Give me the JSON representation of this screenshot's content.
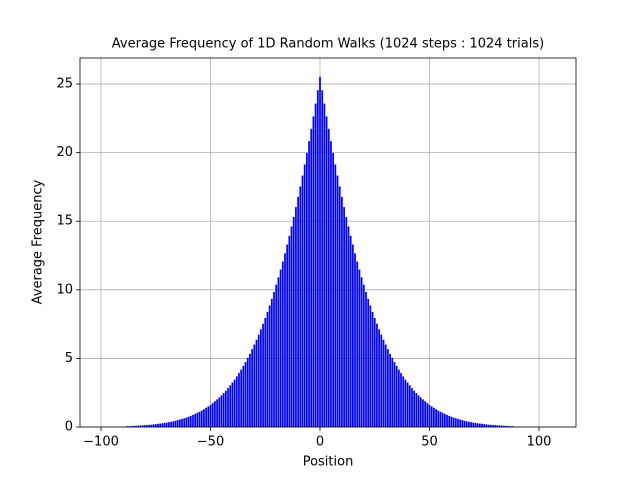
{
  "chart_data": {
    "type": "bar",
    "title": "Average Frequency of 1D Random Walks (1024 steps : 1024 trials)",
    "xlabel": "Position",
    "ylabel": "Average Frequency",
    "x": [
      -88,
      -87,
      -86,
      -85,
      -84,
      -83,
      -82,
      -81,
      -80,
      -79,
      -78,
      -77,
      -76,
      -75,
      -74,
      -73,
      -72,
      -71,
      -70,
      -69,
      -68,
      -67,
      -66,
      -65,
      -64,
      -63,
      -62,
      -61,
      -60,
      -59,
      -58,
      -57,
      -56,
      -55,
      -54,
      -53,
      -52,
      -51,
      -50,
      -49,
      -48,
      -47,
      -46,
      -45,
      -44,
      -43,
      -42,
      -41,
      -40,
      -39,
      -38,
      -37,
      -36,
      -35,
      -34,
      -33,
      -32,
      -31,
      -30,
      -29,
      -28,
      -27,
      -26,
      -25,
      -24,
      -23,
      -22,
      -21,
      -20,
      -19,
      -18,
      -17,
      -16,
      -15,
      -14,
      -13,
      -12,
      -11,
      -10,
      -9,
      -8,
      -7,
      -6,
      -5,
      -4,
      -3,
      -2,
      -1,
      0,
      1,
      2,
      3,
      4,
      5,
      6,
      7,
      8,
      9,
      10,
      11,
      12,
      13,
      14,
      15,
      16,
      17,
      18,
      19,
      20,
      21,
      22,
      23,
      24,
      25,
      26,
      27,
      28,
      29,
      30,
      31,
      32,
      33,
      34,
      35,
      36,
      37,
      38,
      39,
      40,
      41,
      42,
      43,
      44,
      45,
      46,
      47,
      48,
      49,
      50,
      51,
      52,
      53,
      54,
      55,
      56,
      57,
      58,
      59,
      60,
      61,
      62,
      63,
      64,
      65,
      66,
      67,
      68,
      69,
      70,
      71,
      72,
      73,
      74,
      75,
      76,
      77,
      78,
      79,
      80,
      81,
      82,
      83,
      84,
      85,
      86,
      87,
      88
    ],
    "values": [
      0.06,
      0.06,
      0.07,
      0.08,
      0.09,
      0.1,
      0.11,
      0.12,
      0.13,
      0.14,
      0.16,
      0.17,
      0.19,
      0.21,
      0.23,
      0.25,
      0.27,
      0.3,
      0.32,
      0.35,
      0.38,
      0.42,
      0.46,
      0.5,
      0.54,
      0.59,
      0.64,
      0.69,
      0.75,
      0.81,
      0.88,
      0.96,
      1.04,
      1.12,
      1.2,
      1.3,
      1.4,
      1.5,
      1.62,
      1.75,
      1.88,
      2.01,
      2.15,
      2.31,
      2.47,
      2.64,
      2.83,
      3.03,
      3.24,
      3.45,
      3.69,
      3.93,
      4.19,
      4.46,
      4.74,
      5.04,
      5.33,
      5.67,
      6.01,
      6.36,
      6.73,
      7.12,
      7.53,
      7.95,
      8.39,
      8.86,
      9.34,
      9.84,
      10.37,
      10.91,
      11.48,
      12.06,
      12.66,
      13.3,
      13.94,
      14.62,
      15.31,
      16.03,
      16.77,
      17.54,
      18.33,
      19.14,
      19.98,
      20.84,
      21.73,
      22.64,
      23.58,
      24.55,
      25.53,
      24.55,
      23.58,
      22.64,
      21.73,
      20.84,
      19.98,
      19.14,
      18.33,
      17.54,
      16.77,
      16.03,
      15.31,
      14.62,
      13.94,
      13.3,
      12.66,
      12.06,
      11.48,
      10.91,
      10.37,
      9.84,
      9.34,
      8.86,
      8.39,
      7.95,
      7.53,
      7.12,
      6.73,
      6.36,
      6.01,
      5.67,
      5.33,
      5.04,
      4.74,
      4.46,
      4.19,
      3.93,
      3.69,
      3.45,
      3.24,
      3.03,
      2.83,
      2.64,
      2.47,
      2.31,
      2.15,
      2.01,
      1.88,
      1.75,
      1.62,
      1.5,
      1.4,
      1.3,
      1.2,
      1.12,
      1.04,
      0.96,
      0.88,
      0.81,
      0.75,
      0.69,
      0.64,
      0.59,
      0.54,
      0.5,
      0.46,
      0.42,
      0.38,
      0.35,
      0.32,
      0.3,
      0.27,
      0.25,
      0.23,
      0.21,
      0.19,
      0.17,
      0.16,
      0.14,
      0.13,
      0.12,
      0.11,
      0.1,
      0.09,
      0.08,
      0.07,
      0.06,
      0.06
    ],
    "color": "#0000ff",
    "xlim": [
      -109.6,
      116.9
    ],
    "xticks": [
      {
        "value": -100,
        "label": "−100"
      },
      {
        "value": -50,
        "label": "−50"
      },
      0,
      50,
      100
    ],
    "ylim": [
      0,
      26.9
    ],
    "yticks": [
      0,
      5,
      10,
      15,
      20,
      25
    ],
    "grid": true
  }
}
